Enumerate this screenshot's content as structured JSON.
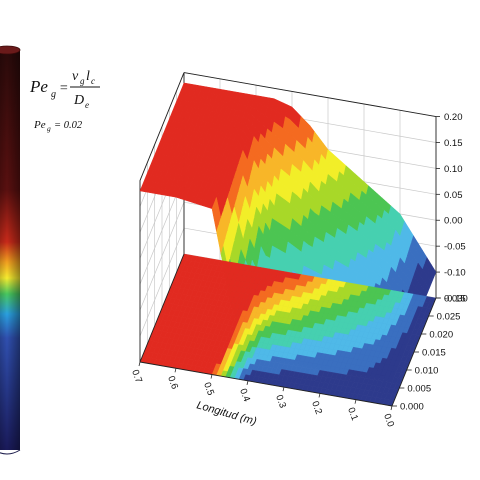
{
  "formula": {
    "lhs": "Pe",
    "lhs_sub": "g",
    "numerator": "v",
    "numerator_sub": "g",
    "numerator2": "l",
    "numerator2_sub": "c",
    "denominator": "D",
    "denominator_sub": "e",
    "value_label": "Pe",
    "value_label_sub": "g",
    "value_text": "= 0.02"
  },
  "chart_data": {
    "type": "surface",
    "title": "",
    "xlabel": "Longitud (m)",
    "ylabel": "",
    "zlabel": "",
    "x_ticks": [
      "0.7",
      "0.6",
      "0.5",
      "0.4",
      "0.3",
      "0.2",
      "0.1",
      "0.0"
    ],
    "y_ticks": [
      "0.000",
      "0.005",
      "0.010",
      "0.015",
      "0.020",
      "0.025",
      "0.030"
    ],
    "z_ticks": [
      "0.20",
      "0.15",
      "0.10",
      "0.05",
      "0.00",
      "-0.05",
      "-0.10",
      "-0.15"
    ],
    "xlim": [
      0.7,
      0.0
    ],
    "ylim": [
      0.0,
      0.03
    ],
    "zlim": [
      -0.15,
      0.2
    ],
    "colormap": [
      "#2d3a8c",
      "#3a6fc0",
      "#4fb9e8",
      "#46d0b0",
      "#4cc552",
      "#a8d828",
      "#f2ee28",
      "#f8b628",
      "#f46a20",
      "#e12a20"
    ],
    "surface_profile": {
      "description_values_x": [
        0.7,
        0.6,
        0.5,
        0.45,
        0.4,
        0.35,
        0.3,
        0.2,
        0.1,
        0.05,
        0.0
      ],
      "z_front_edge": [
        0.18,
        0.18,
        0.17,
        0.0,
        -0.1,
        -0.1,
        -0.1,
        -0.1,
        -0.1,
        -0.1,
        -0.1
      ],
      "z_back_edge": [
        0.18,
        0.18,
        0.18,
        0.18,
        0.17,
        0.14,
        0.1,
        0.05,
        0.0,
        -0.05,
        -0.1
      ]
    }
  }
}
